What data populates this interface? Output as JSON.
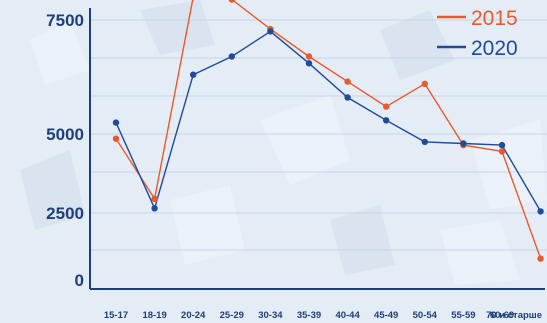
{
  "chart_data": {
    "type": "line",
    "categories": [
      "15-17",
      "18-19",
      "20-24",
      "25-29",
      "30-34",
      "35-39",
      "40-44",
      "45-49",
      "50-54",
      "55-59",
      "60-69",
      "70 и старше"
    ],
    "series": [
      {
        "name": "2015",
        "color": "#e85a2e",
        "values": [
          4850,
          2950,
          8000,
          7950,
          7300,
          6700,
          6150,
          5600,
          6100,
          4650,
          4450,
          800
        ]
      },
      {
        "name": "2020",
        "color": "#1f4b99",
        "values": [
          5250,
          2650,
          6300,
          6700,
          7250,
          6550,
          5800,
          5300,
          4750,
          4700,
          4650,
          2550
        ]
      }
    ],
    "yticks": [
      7500,
      5000,
      2500,
      0
    ],
    "ylim": [
      800,
      8200
    ],
    "grid": true,
    "legend": "top-right",
    "title": "",
    "xlabel": "",
    "ylabel": ""
  }
}
